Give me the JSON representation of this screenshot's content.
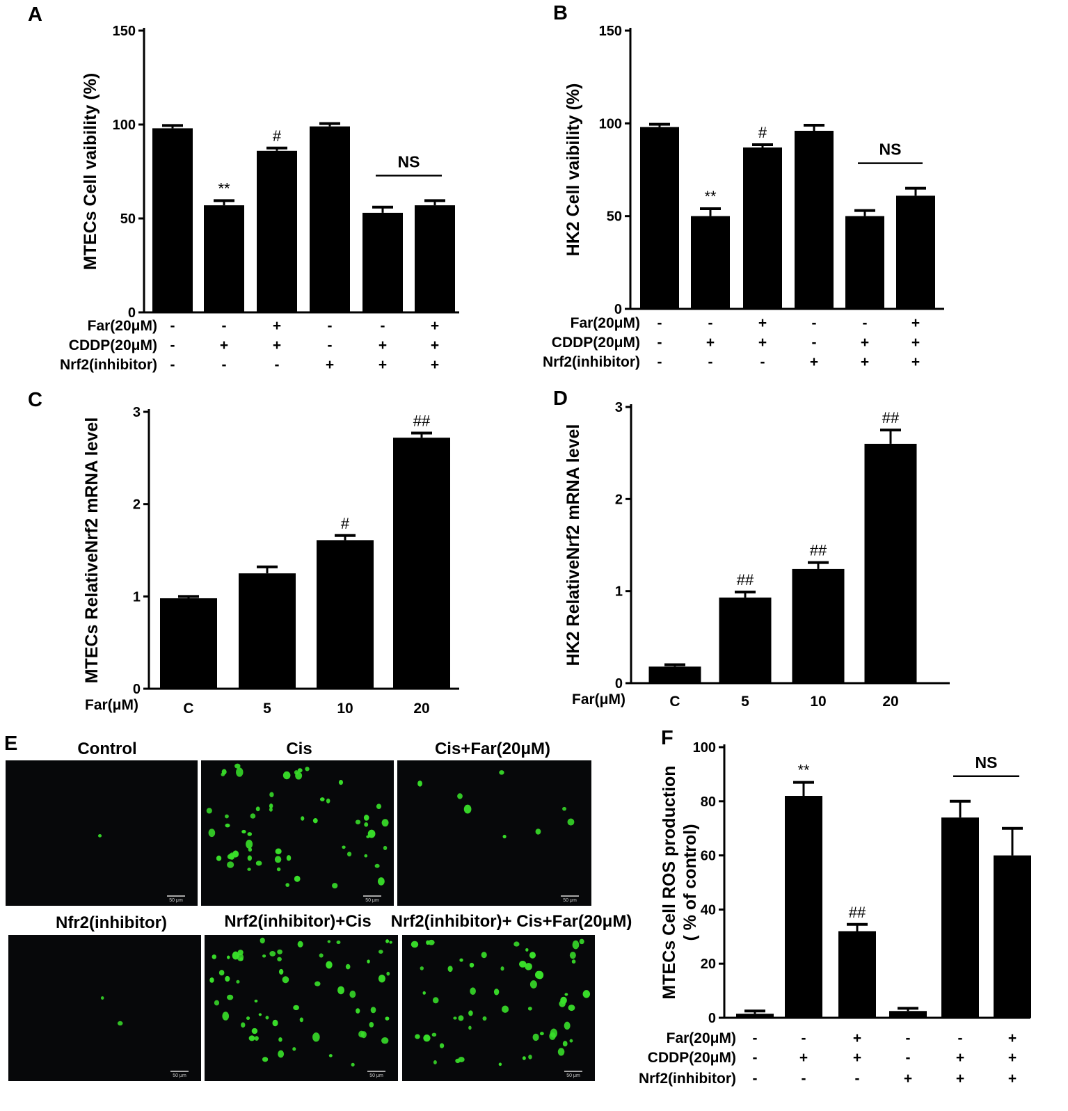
{
  "palette": {
    "bar": "#000000",
    "axis": "#000000",
    "micro_bg": "#07080a",
    "fluor": "#39e02a"
  },
  "chart_data": [
    {
      "panel": "A",
      "type": "bar",
      "ylabel": "MTECs Cell vaibility (%)",
      "ylim": [
        0,
        150
      ],
      "yticks": [
        "0",
        "50",
        "100",
        "150"
      ],
      "values": [
        98,
        57,
        86,
        99,
        53,
        57
      ],
      "errors": [
        1.5,
        2.5,
        1.5,
        1.5,
        3,
        2.5
      ],
      "annotations": [
        "",
        "**",
        "#",
        "",
        "",
        ""
      ],
      "ns": {
        "label": "NS",
        "from": 4,
        "to": 5
      },
      "conditions": [
        {
          "label": "Far(20μM)",
          "signs": [
            "-",
            "-",
            "+",
            "-",
            "-",
            "+"
          ]
        },
        {
          "label": "CDDP(20μM)",
          "signs": [
            "-",
            "+",
            "+",
            "-",
            "+",
            "+"
          ]
        },
        {
          "label": "Nrf2(inhibitor)",
          "signs": [
            "-",
            "-",
            "-",
            "+",
            "+",
            "+"
          ]
        }
      ]
    },
    {
      "panel": "B",
      "type": "bar",
      "ylabel": "HK2 Cell vaibility (%)",
      "ylim": [
        0,
        150
      ],
      "yticks": [
        "0",
        "50",
        "100",
        "150"
      ],
      "values": [
        98,
        50,
        87,
        96,
        50,
        61
      ],
      "errors": [
        1.5,
        4,
        1.5,
        3,
        3,
        4
      ],
      "annotations": [
        "",
        "**",
        "#",
        "",
        "",
        ""
      ],
      "ns": {
        "label": "NS",
        "from": 4,
        "to": 5
      },
      "conditions": [
        {
          "label": "Far(20μM)",
          "signs": [
            "-",
            "-",
            "+",
            "-",
            "-",
            "+"
          ]
        },
        {
          "label": "CDDP(20μM)",
          "signs": [
            "-",
            "+",
            "+",
            "-",
            "+",
            "+"
          ]
        },
        {
          "label": "Nrf2(inhibitor)",
          "signs": [
            "-",
            "-",
            "-",
            "+",
            "+",
            "+"
          ]
        }
      ]
    },
    {
      "panel": "C",
      "type": "bar",
      "ylabel": "MTECs RelativeNrf2 mRNA level",
      "ylim": [
        0,
        3
      ],
      "yticks": [
        "0",
        "1",
        "2",
        "3"
      ],
      "xlabel": "Far(μM)",
      "categories": [
        "C",
        "5",
        "10",
        "20"
      ],
      "values": [
        0.98,
        1.25,
        1.61,
        2.72
      ],
      "errors": [
        0.02,
        0.07,
        0.05,
        0.05
      ],
      "annotations": [
        "",
        "",
        "#",
        "##"
      ]
    },
    {
      "panel": "D",
      "type": "bar",
      "ylabel": "HK2 RelativeNrf2 mRNA level",
      "ylim": [
        0,
        3
      ],
      "yticks": [
        "0",
        "1",
        "2",
        "3"
      ],
      "xlabel": "Far(μM)",
      "categories": [
        "C",
        "5",
        "10",
        "20"
      ],
      "values": [
        0.18,
        0.93,
        1.24,
        2.6
      ],
      "errors": [
        0.02,
        0.06,
        0.07,
        0.15
      ],
      "annotations": [
        "",
        "##",
        "##",
        "##"
      ]
    },
    {
      "panel": "F",
      "type": "bar",
      "ylabel": "MTECs Cell ROS production",
      "ylabel2": "( % of control)",
      "ylim": [
        0,
        100
      ],
      "yticks": [
        "0",
        "20",
        "40",
        "60",
        "80",
        "100"
      ],
      "values": [
        1.5,
        82,
        32,
        2.5,
        74,
        60
      ],
      "errors": [
        1,
        5,
        2.5,
        1,
        6,
        10
      ],
      "annotations": [
        "",
        "**",
        "##",
        "",
        "",
        ""
      ],
      "ns": {
        "label": "NS",
        "from": 4,
        "to": 5
      },
      "conditions": [
        {
          "label": "Far(20μM)",
          "signs": [
            "-",
            "-",
            "+",
            "-",
            "-",
            "+"
          ]
        },
        {
          "label": "CDDP(20μM)",
          "signs": [
            "-",
            "+",
            "+",
            "-",
            "+",
            "+"
          ]
        },
        {
          "label": "Nrf2(inhibitor)",
          "signs": [
            "-",
            "-",
            "-",
            "+",
            "+",
            "+"
          ]
        }
      ]
    }
  ],
  "panel_labels": [
    "A",
    "B",
    "C",
    "D",
    "E",
    "F"
  ],
  "micrographs": {
    "titles": [
      "Control",
      "Cis",
      "Cis+Far(20μM)",
      "Nfr2(inhibitor)",
      "Nrf2(inhibitor)+Cis",
      "Nrf2(inhibitor)+ Cis+Far(20μM)"
    ],
    "scale_bar": "50 μm",
    "cell_counts": [
      1,
      55,
      8,
      2,
      60,
      55
    ]
  }
}
